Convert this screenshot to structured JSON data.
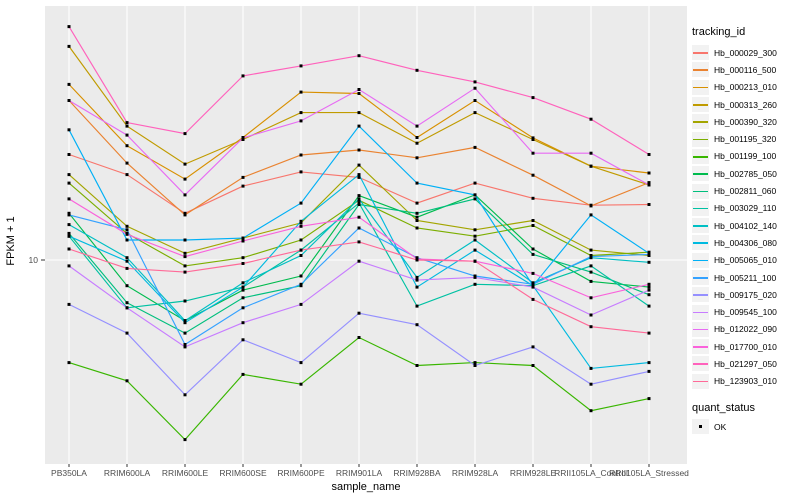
{
  "figure": {
    "background": "#FFFFFF",
    "panel_bg": "#EBEBEB",
    "grid_color": "#FFFFFF",
    "axis_text_color": "#4D4D4D",
    "tick_color": "#333333",
    "point_color": "#000000",
    "legend_key_bg": "#F2F2F2"
  },
  "y_axis": {
    "title": "FPKM + 1",
    "scale": "log10",
    "tick_labels": [
      "10"
    ]
  },
  "x_axis": {
    "title": "sample_name"
  },
  "legend": {
    "tracking_title": "tracking_id",
    "quant_title": "quant_status",
    "quant_items": [
      {
        "label": "OK",
        "marker": "black-square-point"
      }
    ]
  },
  "chart_data": {
    "type": "line",
    "title": "",
    "xlabel": "sample_name",
    "ylabel": "FPKM + 1",
    "yscale": "log10",
    "ybreaks": [
      10
    ],
    "ylim": [
      2,
      80
    ],
    "grid": true,
    "legend_position": "right",
    "marker": "small black square at every point (quant_status OK)",
    "x": [
      "PB350LA",
      "RRIM600LA",
      "RRIM600LE",
      "RRIM600SE",
      "RRIM600PE",
      "RRIM901LA",
      "RRIM928BA",
      "RRIM928LA",
      "RRIM928LE",
      "RRII105LA_Control",
      "RRII105LA_Stressed"
    ],
    "series": [
      {
        "name": "Hb_000029_300",
        "color": "#F8766D",
        "values": [
          25,
          21,
          15,
          19,
          21.5,
          20.5,
          16.4,
          19.5,
          17.1,
          16.1,
          16.2
        ]
      },
      {
        "name": "Hb_000116_500",
        "color": "#EA8331",
        "values": [
          40,
          23.2,
          14.8,
          20.5,
          24.9,
          26,
          24.3,
          26.6,
          20.9,
          16,
          19.6
        ]
      },
      {
        "name": "Hb_000213_010",
        "color": "#D89000",
        "values": [
          46,
          27,
          20.2,
          29,
          43,
          42.5,
          29,
          40,
          28.9,
          22.6,
          21.3
        ]
      },
      {
        "name": "Hb_000313_260",
        "color": "#C09B00",
        "values": [
          64,
          32,
          23,
          28.5,
          36,
          36,
          27.6,
          36,
          28.5,
          22.6,
          19.2
        ]
      },
      {
        "name": "Hb_000390_320",
        "color": "#A3A500",
        "values": [
          21,
          13.4,
          10.6,
          12.1,
          13.8,
          22.8,
          14.1,
          13,
          14.1,
          10.9,
          10.4
        ]
      },
      {
        "name": "Hb_001195_320",
        "color": "#7CAE00",
        "values": [
          19.5,
          12.6,
          9.5,
          10.2,
          11.9,
          16.8,
          13.2,
          12.3,
          13.5,
          10.4,
          10.7
        ]
      },
      {
        "name": "Hb_001199_100",
        "color": "#39B600",
        "values": [
          4.1,
          3.5,
          2.1,
          3.7,
          3.4,
          5.1,
          4,
          4.1,
          4,
          2.7,
          3
        ]
      },
      {
        "name": "Hb_002785_050",
        "color": "#00BB4E",
        "values": [
          15,
          8,
          5.9,
          7.7,
          8.7,
          17.5,
          14.5,
          17.6,
          11,
          8.3,
          7.9
        ]
      },
      {
        "name": "Hb_002811_060",
        "color": "#00BF7D",
        "values": [
          12.6,
          6.9,
          5.3,
          7.2,
          8,
          16.2,
          15,
          17,
          10.5,
          9,
          7.4
        ]
      },
      {
        "name": "Hb_003029_110",
        "color": "#00C1A3",
        "values": [
          12.3,
          6.6,
          7,
          7.9,
          10.9,
          16.4,
          6.7,
          8.1,
          8,
          9.5,
          6.7
        ]
      },
      {
        "name": "Hb_004102_140",
        "color": "#00BFC4",
        "values": [
          13.6,
          10.2,
          5.9,
          8.2,
          10.4,
          17,
          8.6,
          11.9,
          8.2,
          10.2,
          9.8
        ]
      },
      {
        "name": "Hb_004306_080",
        "color": "#00BAE0",
        "values": [
          12.3,
          9.9,
          5.8,
          7.9,
          14,
          21,
          7.9,
          10.9,
          8,
          3.9,
          4.1
        ]
      },
      {
        "name": "Hb_005065_010",
        "color": "#00B0F6",
        "values": [
          31,
          11.9,
          11.9,
          12.1,
          16.4,
          32,
          19.5,
          17.6,
          8,
          14.8,
          10.6
        ]
      },
      {
        "name": "Hb_005211_100",
        "color": "#35A2FF",
        "values": [
          14.8,
          13,
          4.8,
          6.6,
          8.1,
          13.2,
          10.2,
          8.7,
          8.1,
          10.3,
          10.5
        ]
      },
      {
        "name": "Hb_009175_020",
        "color": "#9590FF",
        "values": [
          6.8,
          5.3,
          3.1,
          5,
          4.1,
          6.3,
          5.7,
          4,
          4.7,
          3.4,
          3.8
        ]
      },
      {
        "name": "Hb_009545_100",
        "color": "#C77CFF",
        "values": [
          9.5,
          6.6,
          4.7,
          5.8,
          6.8,
          9.9,
          8.4,
          8.6,
          7.9,
          6.2,
          7.7
        ]
      },
      {
        "name": "Hb_012022_090",
        "color": "#E76BF3",
        "values": [
          40,
          29.6,
          17.6,
          28.9,
          33.5,
          44,
          32,
          44.5,
          25.3,
          25.3,
          19.2
        ]
      },
      {
        "name": "Hb_017700_010",
        "color": "#FA62DB",
        "values": [
          17,
          12.5,
          10.3,
          11.8,
          13.4,
          14.5,
          10.1,
          9.9,
          8.9,
          7.2,
          8.1
        ]
      },
      {
        "name": "Hb_021297_050",
        "color": "#FF62BC",
        "values": [
          76,
          33,
          30,
          49.5,
          54,
          59,
          52,
          47,
          41,
          34,
          25
        ]
      },
      {
        "name": "Hb_123903_010",
        "color": "#FF6A98",
        "values": [
          11,
          9.3,
          9,
          9.7,
          10.9,
          11.7,
          10,
          9.9,
          7.1,
          5.6,
          5.3
        ]
      }
    ]
  }
}
